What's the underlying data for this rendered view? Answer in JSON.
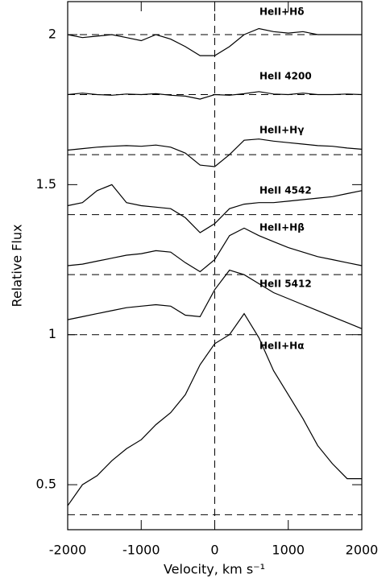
{
  "chart_data": {
    "type": "line",
    "xlabel": "Velocity, km s⁻¹",
    "ylabel": "Relative Flux",
    "x": [
      -2000,
      -1800,
      -1600,
      -1400,
      -1200,
      -1000,
      -800,
      -600,
      -400,
      -200,
      0,
      200,
      400,
      600,
      800,
      1000,
      1200,
      1400,
      1600,
      1800,
      2000
    ],
    "series": [
      {
        "name": "HeII+Hδ",
        "color": "#000000",
        "values": [
          2.0,
          1.99,
          1.995,
          2.0,
          1.99,
          1.98,
          2.0,
          1.985,
          1.96,
          1.93,
          1.93,
          1.96,
          2.0,
          2.02,
          2.01,
          2.005,
          2.01,
          2.0,
          2.0,
          2.0,
          2.0
        ]
      },
      {
        "name": "HeII 4200",
        "color": "#000000",
        "values": [
          1.8,
          1.805,
          1.8,
          1.798,
          1.802,
          1.8,
          1.803,
          1.798,
          1.795,
          1.785,
          1.8,
          1.798,
          1.803,
          1.81,
          1.802,
          1.8,
          1.805,
          1.8,
          1.8,
          1.802,
          1.8
        ]
      },
      {
        "name": "HeII+Hγ",
        "color": "#000000",
        "values": [
          1.615,
          1.62,
          1.625,
          1.628,
          1.63,
          1.628,
          1.632,
          1.625,
          1.605,
          1.565,
          1.56,
          1.6,
          1.648,
          1.652,
          1.645,
          1.64,
          1.635,
          1.63,
          1.628,
          1.622,
          1.618
        ]
      },
      {
        "name": "HeII 4542",
        "color": "#000000",
        "values": [
          1.43,
          1.44,
          1.48,
          1.5,
          1.44,
          1.43,
          1.425,
          1.42,
          1.39,
          1.34,
          1.37,
          1.42,
          1.435,
          1.44,
          1.44,
          1.445,
          1.45,
          1.455,
          1.46,
          1.47,
          1.48
        ]
      },
      {
        "name": "HeII+Hβ",
        "color": "#000000",
        "values": [
          1.23,
          1.235,
          1.245,
          1.255,
          1.265,
          1.27,
          1.28,
          1.275,
          1.24,
          1.21,
          1.25,
          1.33,
          1.355,
          1.33,
          1.31,
          1.29,
          1.275,
          1.26,
          1.25,
          1.24,
          1.23
        ]
      },
      {
        "name": "HeII 5412",
        "color": "#000000",
        "values": [
          1.05,
          1.06,
          1.07,
          1.08,
          1.09,
          1.095,
          1.1,
          1.095,
          1.065,
          1.06,
          1.15,
          1.215,
          1.2,
          1.17,
          1.14,
          1.12,
          1.1,
          1.08,
          1.06,
          1.04,
          1.02
        ]
      },
      {
        "name": "HeII+Hα",
        "color": "#000000",
        "values": [
          0.43,
          0.5,
          0.53,
          0.58,
          0.62,
          0.65,
          0.7,
          0.74,
          0.8,
          0.9,
          0.97,
          1.0,
          1.07,
          0.99,
          0.88,
          0.8,
          0.72,
          0.63,
          0.57,
          0.52,
          0.52
        ]
      }
    ],
    "baselines": [
      2.0,
      1.8,
      1.6,
      1.4,
      1.2,
      1.0,
      0.4
    ],
    "vline": 0,
    "xlim": [
      -2000,
      2000
    ],
    "xticks": [
      -2000,
      -1000,
      0,
      1000,
      2000
    ],
    "ylim": [
      0.35,
      2.11
    ],
    "yticks": [
      0.5,
      1,
      1.5,
      2
    ]
  }
}
